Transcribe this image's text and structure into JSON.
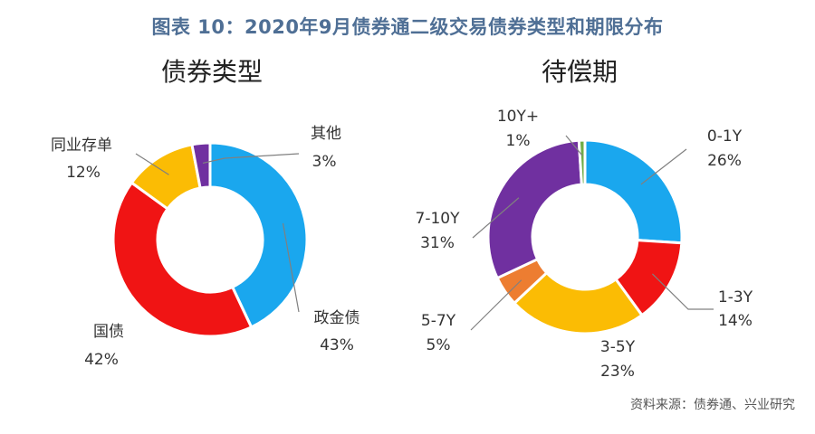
{
  "figure_title": "图表 10：2020年9月债券通二级交易债券类型和期限分布",
  "source": "资料来源：债券通、兴业研究",
  "chart_data": [
    {
      "type": "pie",
      "title": "债券类型",
      "categories": [
        "政金债",
        "国债",
        "同业存单",
        "其他"
      ],
      "values": [
        43,
        42,
        12,
        3
      ],
      "value_labels": [
        "43%",
        "42%",
        "12%",
        "3%"
      ],
      "colors": [
        "#1aa7ee",
        "#f01414",
        "#fbbc04",
        "#7030a0"
      ]
    },
    {
      "type": "pie",
      "title": "待偿期",
      "categories": [
        "0-1Y",
        "1-3Y",
        "3-5Y",
        "5-7Y",
        "7-10Y",
        "10Y+"
      ],
      "values": [
        26,
        14,
        23,
        5,
        31,
        1
      ],
      "value_labels": [
        "26%",
        "14%",
        "23%",
        "5%",
        "31%",
        "1%"
      ],
      "colors": [
        "#1aa7ee",
        "#f01414",
        "#fbbc04",
        "#ed7d31",
        "#7030a0",
        "#70ad47"
      ]
    }
  ]
}
